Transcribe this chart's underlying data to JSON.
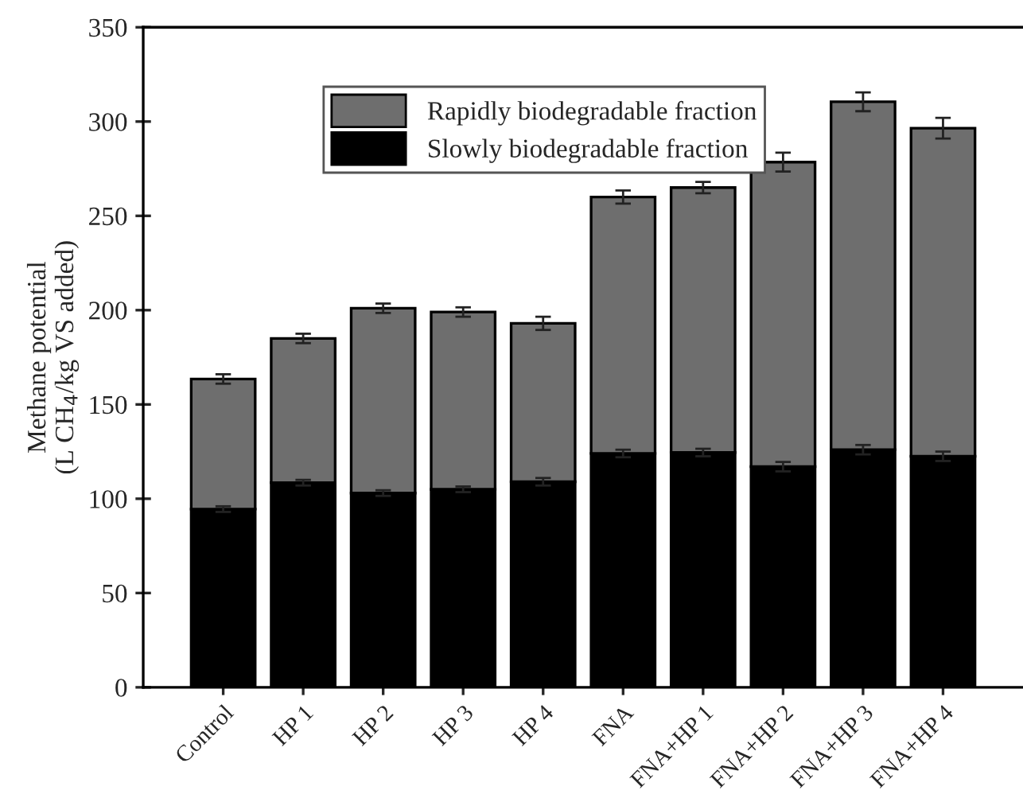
{
  "chart_data": {
    "type": "bar",
    "stacked": true,
    "ylabel": "Methane potential\n(L CH$_{4}$/kg VS added)",
    "categories": [
      "Control",
      "HP 1",
      "HP 2",
      "HP 3",
      "HP 4",
      "FNA",
      "FNA+HP 1",
      "FNA+HP 2",
      "FNA+HP 3",
      "FNA+HP 4"
    ],
    "series": [
      {
        "name": "Slowly biodegradable fraction",
        "color": "#000000",
        "values": [
          94.5,
          108.5,
          103,
          105,
          109,
          124,
          124.5,
          117,
          126,
          122.5
        ],
        "errors": [
          1.5,
          1.5,
          1.5,
          1.5,
          2,
          2,
          2,
          2.5,
          2.5,
          2.5
        ]
      },
      {
        "name": "Rapidly biodegradable fraction",
        "color": "#6e6e6e",
        "values": [
          69,
          76.5,
          98,
          94,
          84,
          136,
          140.5,
          161.5,
          184.5,
          174
        ],
        "errors": [
          2.5,
          2.5,
          2.5,
          2.5,
          3.5,
          3.5,
          3,
          5,
          5,
          5.5
        ]
      }
    ],
    "ylim": [
      0,
      350
    ],
    "yticks": [
      0,
      50,
      100,
      150,
      200,
      250,
      300,
      350
    ],
    "legend": "top left",
    "grid": false
  }
}
